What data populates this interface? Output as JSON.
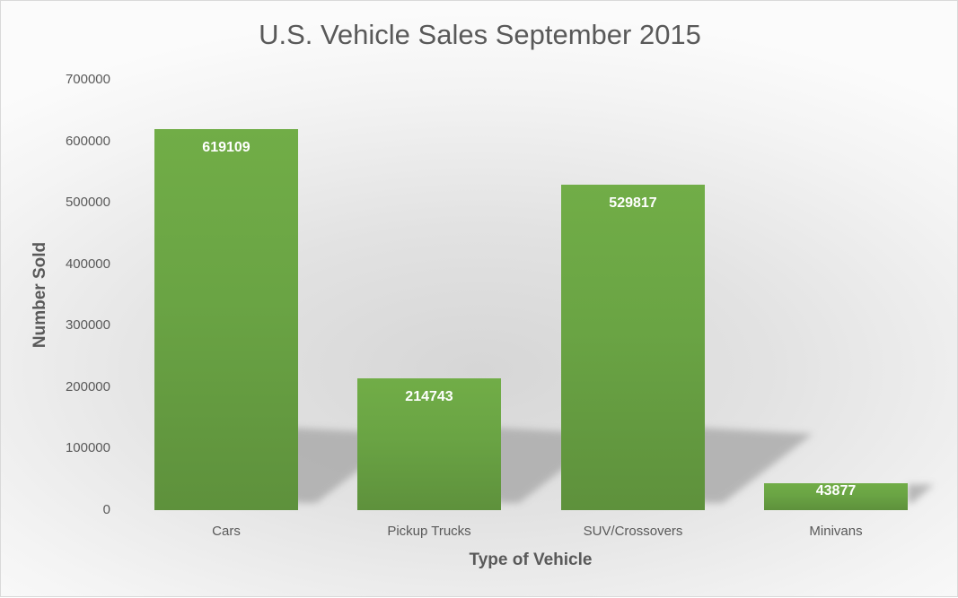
{
  "chart_data": {
    "type": "bar",
    "title": "U.S. Vehicle Sales September 2015",
    "xlabel": "Type of Vehicle",
    "ylabel": "Number Sold",
    "categories": [
      "Cars",
      "Pickup Trucks",
      "SUV/Crossovers",
      "Minivans"
    ],
    "values": [
      619109,
      214743,
      529817,
      43877
    ],
    "data_labels": [
      "619109",
      "214743",
      "529817",
      "43877"
    ],
    "ylim": [
      0,
      700000
    ],
    "yticks": [
      "0",
      "100000",
      "200000",
      "300000",
      "400000",
      "500000",
      "600000",
      "700000"
    ],
    "grid": false,
    "legend": null,
    "bar_color": "#6aa444",
    "label_color": "#ffffff"
  }
}
